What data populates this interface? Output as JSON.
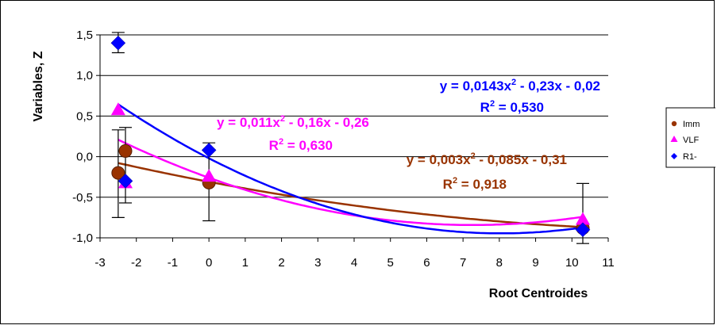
{
  "chart_data": {
    "type": "scatter",
    "title": "",
    "xlabel": "Root Centroides",
    "ylabel": "Variables, Z",
    "xlim": [
      -3,
      11
    ],
    "ylim": [
      -1.0,
      1.5
    ],
    "x_ticks": [
      "-3",
      "-2",
      "-1",
      "0",
      "1",
      "2",
      "3",
      "4",
      "5",
      "6",
      "7",
      "8",
      "9",
      "10",
      "11"
    ],
    "y_ticks": [
      "-1,0",
      "-0,5",
      "0,0",
      "0,5",
      "1,0",
      "1,5"
    ],
    "grid": "horizontal",
    "legend_position": "right",
    "series": [
      {
        "name": "Imm",
        "color": "#993300",
        "marker": "circle",
        "points": [
          {
            "x": -2.5,
            "y": -0.2,
            "err_low": -0.75,
            "err_high": 0.33
          },
          {
            "x": -2.3,
            "y": 0.07
          },
          {
            "x": 0.0,
            "y": -0.32,
            "err_low": -0.79,
            "err_high": 0.17
          },
          {
            "x": 10.3,
            "y": -0.88,
            "err_low": -1.07,
            "err_high": -0.33
          }
        ],
        "fit": {
          "a": 0.003,
          "b": -0.085,
          "c": -0.31
        },
        "equation": "y = 0,003x",
        "equation_tail": " - 0,085x - 0,31",
        "r2_label": "R",
        "r2_value": " = 0,918"
      },
      {
        "name": "VLF",
        "color": "#ff00ff",
        "marker": "triangle",
        "points": [
          {
            "x": -2.5,
            "y": 0.58
          },
          {
            "x": -2.3,
            "y": -0.32
          },
          {
            "x": 0.0,
            "y": -0.24
          },
          {
            "x": 10.3,
            "y": -0.77
          }
        ],
        "fit": {
          "a": 0.011,
          "b": -0.16,
          "c": -0.26
        },
        "equation": "y = 0,011x",
        "equation_tail": " - 0,16x - 0,26",
        "r2_label": "R",
        "r2_value": " = 0,630"
      },
      {
        "name": "R1-",
        "color": "#0000ff",
        "marker": "diamond",
        "points": [
          {
            "x": -2.5,
            "y": 1.4,
            "err_low": 1.28,
            "err_high": 1.53
          },
          {
            "x": -2.3,
            "y": -0.3,
            "err_low": -0.57,
            "err_high": 0.36
          },
          {
            "x": 0.0,
            "y": 0.08
          },
          {
            "x": 10.3,
            "y": -0.9
          }
        ],
        "fit": {
          "a": 0.0143,
          "b": -0.23,
          "c": -0.02
        },
        "equation": "y = 0,0143x",
        "equation_tail": " - 0,23x - 0,02",
        "r2_label": "R",
        "r2_value": " = 0,530"
      }
    ]
  }
}
